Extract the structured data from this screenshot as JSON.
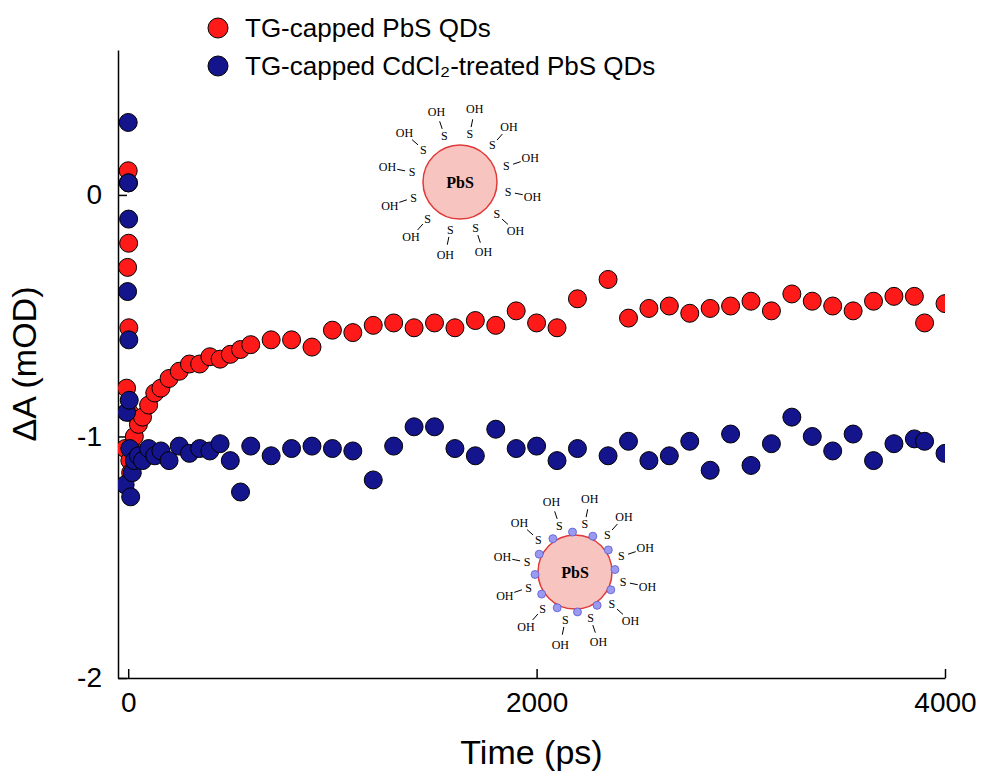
{
  "chart_data": {
    "type": "scatter",
    "xlabel": "Time (ps)",
    "ylabel": "ΔA (mOD)",
    "xlim": [
      -50,
      4000
    ],
    "ylim": [
      -2,
      0.6
    ],
    "xticks": [
      0,
      2000,
      4000
    ],
    "yticks": [
      -2,
      -1,
      0
    ],
    "legend": "top",
    "x": [
      -15,
      -8,
      -3,
      0,
      1,
      2,
      3,
      5,
      8,
      12,
      20,
      30,
      50,
      70,
      100,
      130,
      160,
      200,
      250,
      300,
      350,
      400,
      450,
      500,
      550,
      600,
      700,
      800,
      900,
      1000,
      1100,
      1200,
      1300,
      1400,
      1500,
      1600,
      1700,
      1800,
      1900,
      2000,
      2100,
      2200,
      2350,
      2450,
      2550,
      2650,
      2750,
      2850,
      2950,
      3050,
      3150,
      3250,
      3350,
      3450,
      3550,
      3650,
      3750,
      3850,
      3900,
      4000
    ],
    "series": [
      {
        "name": "TG-capped PbS QDs",
        "color": "#ff1a1a",
        "marker": "circle",
        "values": [
          -1.05,
          -0.8,
          -0.3,
          0.1,
          0.05,
          -0.2,
          -0.55,
          -0.9,
          -1.1,
          -1.15,
          -1.05,
          -1.0,
          -0.95,
          -0.92,
          -0.87,
          -0.82,
          -0.8,
          -0.76,
          -0.73,
          -0.7,
          -0.7,
          -0.67,
          -0.68,
          -0.66,
          -0.64,
          -0.62,
          -0.6,
          -0.6,
          -0.63,
          -0.56,
          -0.57,
          -0.54,
          -0.53,
          -0.55,
          -0.53,
          -0.55,
          -0.52,
          -0.54,
          -0.48,
          -0.53,
          -0.55,
          -0.43,
          -0.35,
          -0.51,
          -0.47,
          -0.46,
          -0.49,
          -0.47,
          -0.46,
          -0.44,
          -0.48,
          -0.41,
          -0.44,
          -0.46,
          -0.48,
          -0.44,
          -0.42,
          -0.42,
          -0.53,
          -0.45
        ]
      },
      {
        "name": "TG-capped CdCl₂-treated PbS QDs",
        "color": "#14148c",
        "marker": "circle",
        "values": [
          -1.2,
          -0.9,
          -0.4,
          0.3,
          0.05,
          -0.1,
          -0.6,
          -0.85,
          -1.05,
          -1.25,
          -1.15,
          -1.1,
          -1.08,
          -1.1,
          -1.05,
          -1.08,
          -1.06,
          -1.1,
          -1.04,
          -1.07,
          -1.05,
          -1.06,
          -1.03,
          -1.1,
          -1.23,
          -1.04,
          -1.08,
          -1.05,
          -1.04,
          -1.05,
          -1.06,
          -1.18,
          -1.04,
          -0.96,
          -0.96,
          -1.05,
          -1.08,
          -0.97,
          -1.05,
          -1.04,
          -1.1,
          -1.05,
          -1.08,
          -1.02,
          -1.1,
          -1.08,
          -1.02,
          -1.14,
          -0.99,
          -1.12,
          -1.03,
          -0.92,
          -1.0,
          -1.06,
          -0.99,
          -1.1,
          -1.03,
          -1.01,
          -1.02,
          -1.07
        ]
      }
    ],
    "annotations": [
      {
        "core": "PbS",
        "ligand": [
          "S",
          "OH"
        ]
      },
      {
        "core": "PbS",
        "ligand": [
          "S",
          "OH"
        ]
      }
    ]
  }
}
